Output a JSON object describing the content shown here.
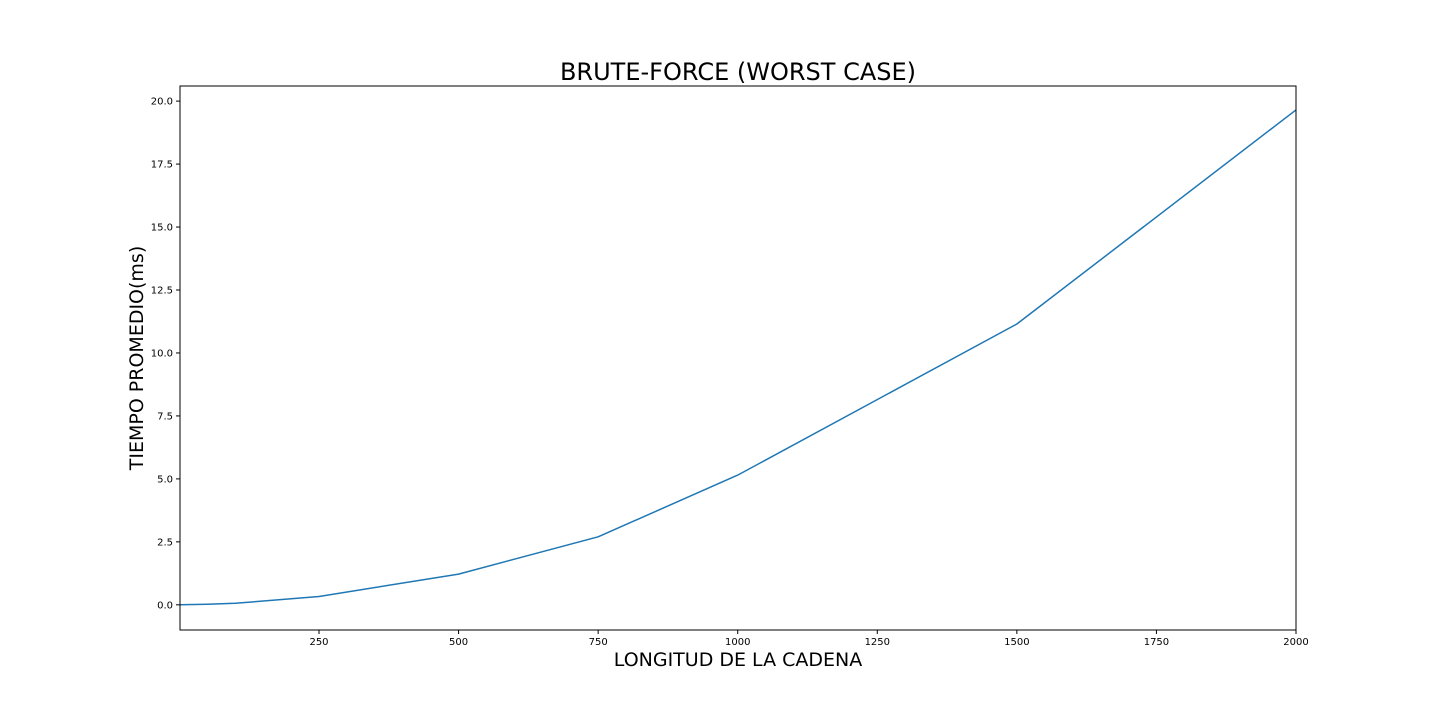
{
  "chart_data": {
    "type": "line",
    "title": "BRUTE-FORCE (WORST CASE)",
    "xlabel": "LONGITUD DE LA CADENA",
    "ylabel": "TIEMPO PROMEDIO(ms)",
    "xlim": [
      1,
      2000
    ],
    "ylim": [
      -1,
      20.6
    ],
    "x_ticks": [
      250,
      500,
      750,
      1000,
      1250,
      1500,
      1750,
      2000
    ],
    "x_tick_labels": [
      "250",
      "500",
      "750",
      "1000",
      "1250",
      "1500",
      "1750",
      "2000"
    ],
    "y_ticks": [
      0,
      2.5,
      5,
      7.5,
      10,
      12.5,
      15,
      17.5,
      20
    ],
    "y_tick_labels": [
      "0.0",
      "2.5",
      "5.0",
      "7.5",
      "10.0",
      "12.5",
      "15.0",
      "17.5",
      "20.0"
    ],
    "grid": false,
    "series": [
      {
        "color": "#1f77b4",
        "x": [
          1,
          50,
          100,
          250,
          500,
          750,
          1000,
          1500,
          2000
        ],
        "y": [
          0.0,
          0.02,
          0.06,
          0.33,
          1.22,
          2.7,
          5.15,
          11.15,
          19.65
        ]
      }
    ]
  }
}
